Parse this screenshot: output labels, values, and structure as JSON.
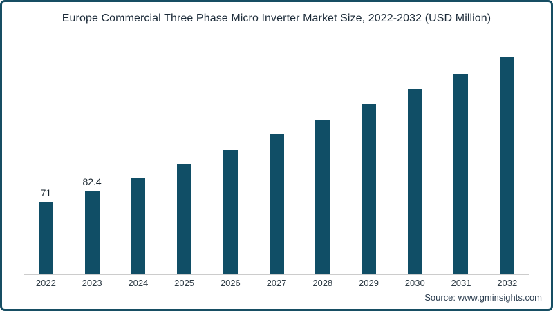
{
  "frame": {
    "border_color": "#174e63",
    "background": "#ffffff"
  },
  "source": "Source: www.gminsights.com",
  "chart_data": {
    "type": "bar",
    "title": "Europe Commercial Three Phase Micro Inverter Market Size, 2022-2032 (USD Million)",
    "categories": [
      "2022",
      "2023",
      "2024",
      "2025",
      "2026",
      "2027",
      "2028",
      "2029",
      "2030",
      "2031",
      "2032"
    ],
    "values": [
      71,
      82.4,
      95,
      108,
      122,
      138,
      152,
      168,
      182,
      197,
      214
    ],
    "data_labels": [
      "71",
      "82.4",
      "",
      "",
      "",
      "",
      "",
      "",
      "",
      "",
      ""
    ],
    "xlabel": "",
    "ylabel": "",
    "ylim": [
      0,
      220
    ],
    "grid": false,
    "legend": false,
    "bar_color": "#104e66",
    "axis_line_color": "#cccccc",
    "title_color": "#1b2a38",
    "tick_label_color": "#2e3b45"
  }
}
